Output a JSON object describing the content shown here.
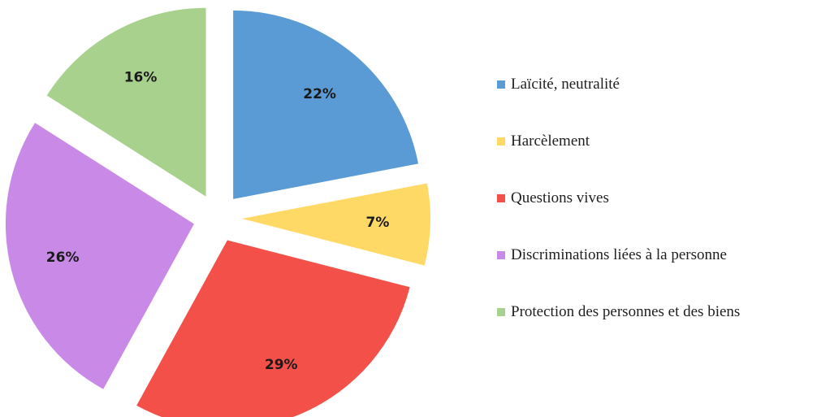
{
  "chart_data": {
    "type": "pie",
    "title": "",
    "slices": [
      {
        "label": "Laïcité, neutralité",
        "value": 22,
        "display": "22%",
        "color": "#5B9BD5"
      },
      {
        "label": "Harcèlement",
        "value": 7,
        "display": "7%",
        "color": "#FFD966"
      },
      {
        "label": "Questions vives",
        "value": 29,
        "display": "29%",
        "color": "#F4504A"
      },
      {
        "label": "Discriminations liées à la personne",
        "value": 26,
        "display": "26%",
        "color": "#C88AE6"
      },
      {
        "label": "Protection des personnes et des biens",
        "value": 16,
        "display": "16%",
        "color": "#A9D18E"
      }
    ],
    "legend_position": "right",
    "exploded": true
  }
}
